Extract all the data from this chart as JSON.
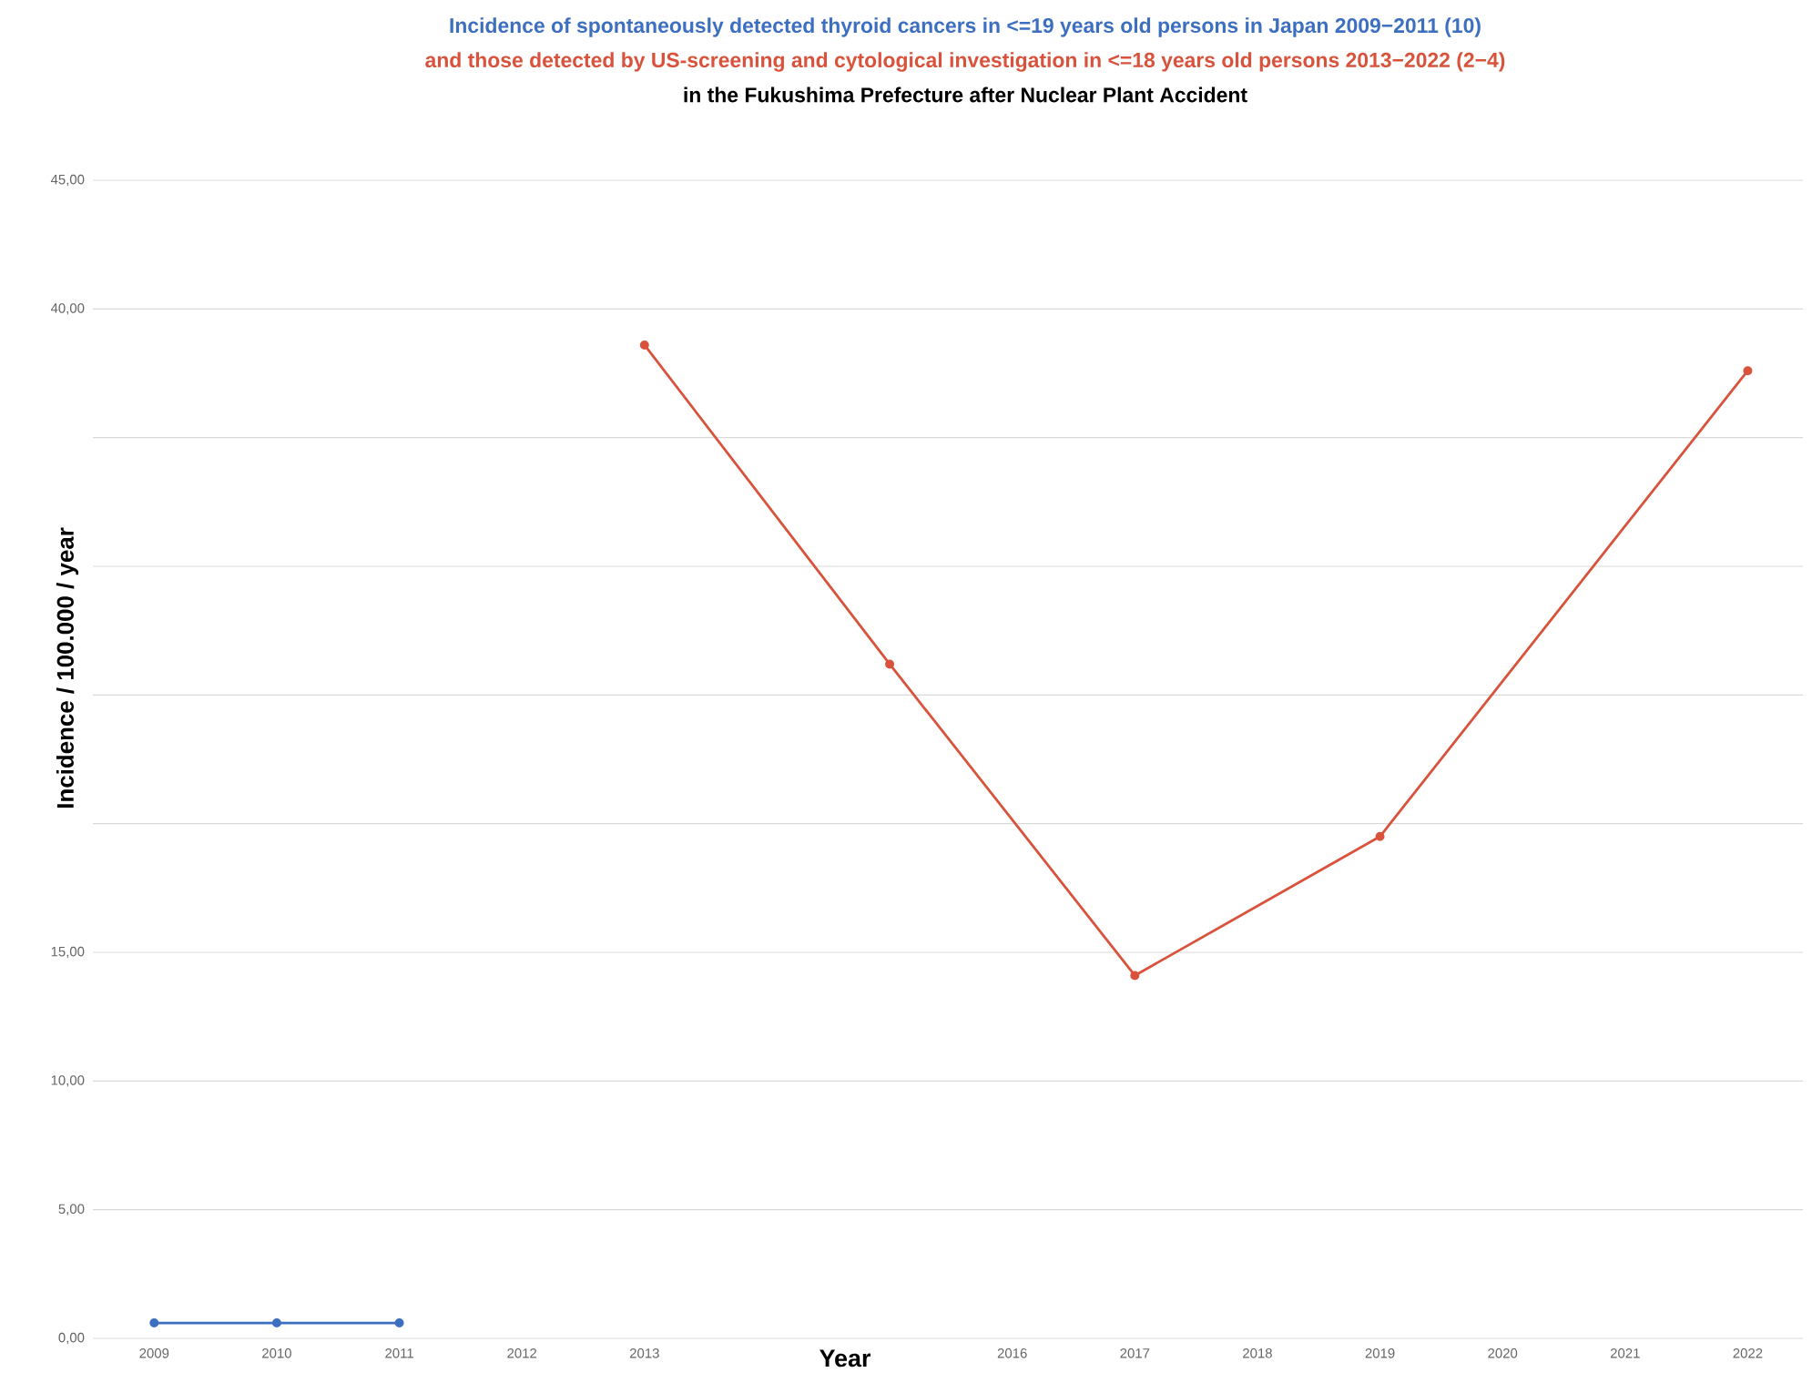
{
  "chart_data": {
    "type": "line",
    "title": "Incidence of spontaneously detected thyroid cancers in <=19 years old persons in Japan 2009−2011 (10)",
    "subtitle": "and those detected by US-screening and cytological investigation in <=18 years old persons 2013−2022 (2−4)",
    "annotations": [
      "in the Fukushima Prefecture after Nuclear Plant Accident"
    ],
    "xlabel": "Year",
    "ylabel": "Incidence / 100.000 / year",
    "xlim": [
      2008.5,
      2022.45
    ],
    "xticks": [
      2009,
      2010,
      2011,
      2012,
      2013,
      2016,
      2017,
      2018,
      2019,
      2020,
      2021,
      2022
    ],
    "ylim": [
      0,
      45
    ],
    "yticks": [
      {
        "value": 0,
        "label": "0,00"
      },
      {
        "value": 5,
        "label": "5,00"
      },
      {
        "value": 10,
        "label": "10,00"
      },
      {
        "value": 15,
        "label": "15,00"
      },
      {
        "value": 20,
        "label": null
      },
      {
        "value": 25,
        "label": null
      },
      {
        "value": 30,
        "label": null
      },
      {
        "value": 35,
        "label": null
      },
      {
        "value": 40,
        "label": "40,00"
      },
      {
        "value": 45,
        "label": "45,00"
      }
    ],
    "grid": "y",
    "marker": "circle",
    "line_style": "solid",
    "series": [
      {
        "color": "#3d6fc0",
        "x": [
          2009,
          2010,
          2011
        ],
        "values": [
          0.6,
          0.6,
          0.6
        ]
      },
      {
        "color": "#d9533c",
        "x": [
          2013,
          2015,
          2017,
          2019,
          2022
        ],
        "values": [
          38.6,
          26.2,
          14.1,
          19.5,
          37.6
        ]
      }
    ]
  }
}
